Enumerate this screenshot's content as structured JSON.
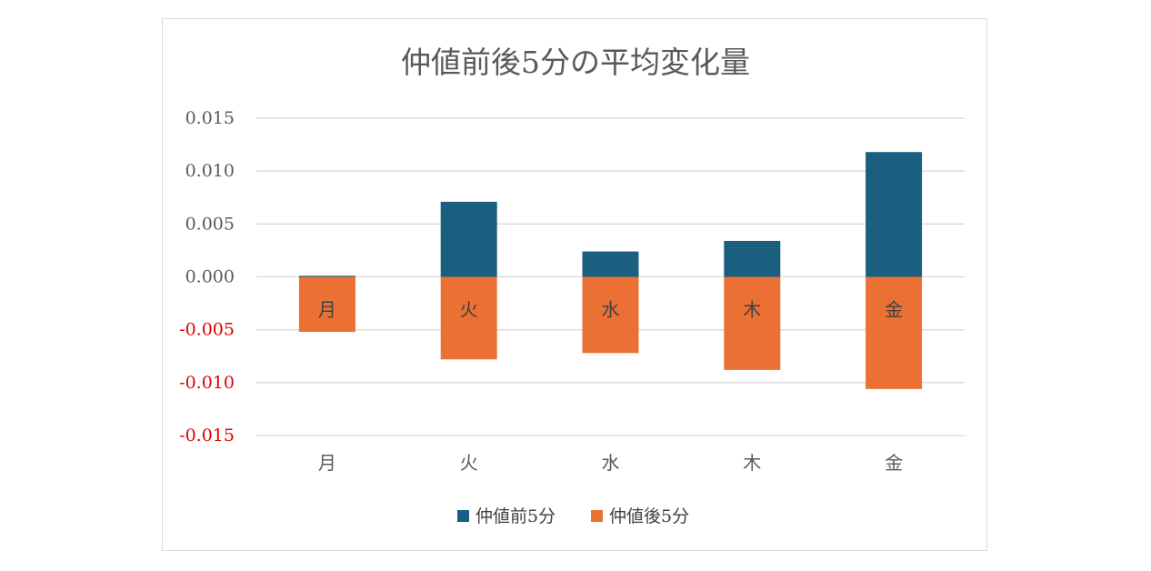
{
  "chart_data": {
    "type": "bar",
    "stacked": true,
    "title": "仲値前後5分の平均変化量",
    "categories": [
      "月",
      "火",
      "水",
      "木",
      "金"
    ],
    "series": [
      {
        "name": "仲値前5分",
        "color": "#1a5f80",
        "values": [
          0.0001,
          0.0071,
          0.0024,
          0.0034,
          0.0118
        ]
      },
      {
        "name": "仲値後5分",
        "color": "#ea7133",
        "values": [
          -0.0052,
          -0.0078,
          -0.0072,
          -0.0088,
          -0.0106
        ]
      }
    ],
    "in_bar_labels": [
      "月",
      "火",
      "水",
      "木",
      "金"
    ],
    "ylim": [
      -0.015,
      0.015
    ],
    "yticks": [
      "0.015",
      "0.010",
      "0.005",
      "0.000",
      "-0.005",
      "-0.010",
      "-0.015"
    ],
    "negative_tick_color": "#e00000",
    "xlabel": "",
    "ylabel": "",
    "grid": true,
    "legend_position": "bottom"
  }
}
